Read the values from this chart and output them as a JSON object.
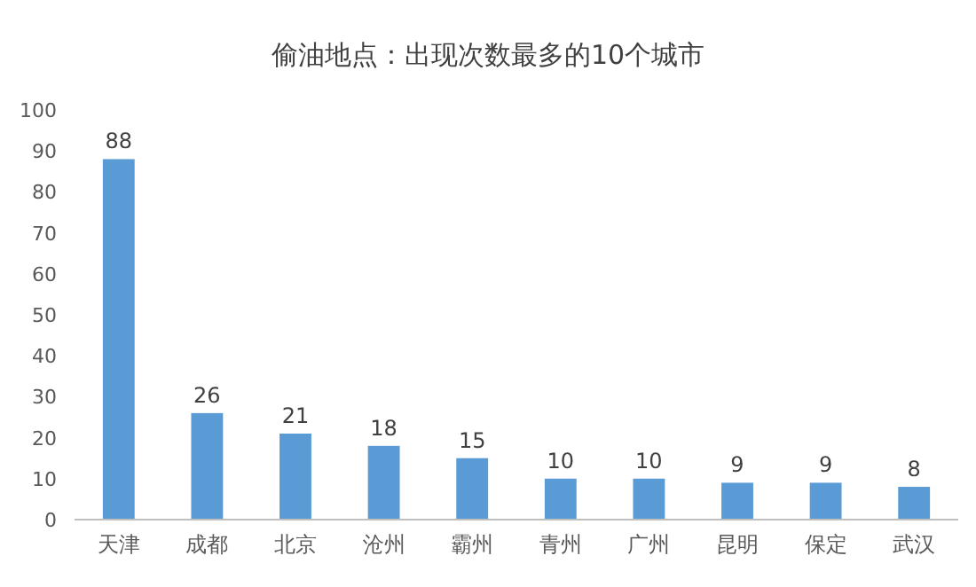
{
  "chart_data": {
    "type": "bar",
    "title": "偷油地点：出现次数最多的10个城市",
    "categories": [
      "天津",
      "成都",
      "北京",
      "沧州",
      "霸州",
      "青州",
      "广州",
      "昆明",
      "保定",
      "武汉"
    ],
    "values": [
      88,
      26,
      21,
      18,
      15,
      10,
      10,
      9,
      9,
      8
    ],
    "color": "#5b9bd5",
    "ylim": [
      0,
      100
    ],
    "yticks": [
      0,
      10,
      20,
      30,
      40,
      50,
      60,
      70,
      80,
      90,
      100
    ],
    "data_labels": true
  }
}
